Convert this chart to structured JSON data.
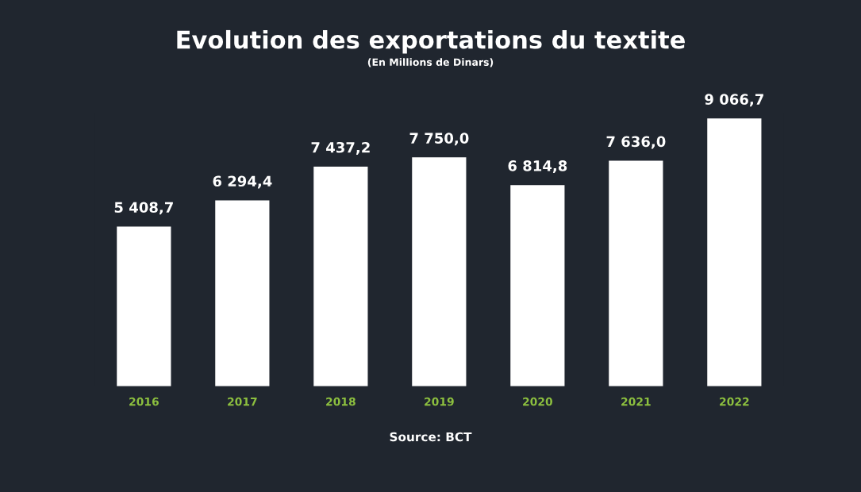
{
  "chart_data": {
    "type": "bar",
    "title": "Evolution des exportations du textite",
    "subtitle": "(En Millions de Dinars)",
    "categories": [
      "2016",
      "2017",
      "2018",
      "2019",
      "2020",
      "2021",
      "2022"
    ],
    "values": [
      5408.7,
      6294.4,
      7437.2,
      7750.0,
      6814.8,
      7636.0,
      9066.7
    ],
    "value_labels": [
      "5 408,7",
      "6 294,4",
      "7 437,2",
      "7 750,0",
      "6 814,8",
      "7 636,0",
      "9 066,7"
    ],
    "color": "#ffffff",
    "annotations": [
      "Source: BCT"
    ],
    "grid": false,
    "legend": false
  }
}
